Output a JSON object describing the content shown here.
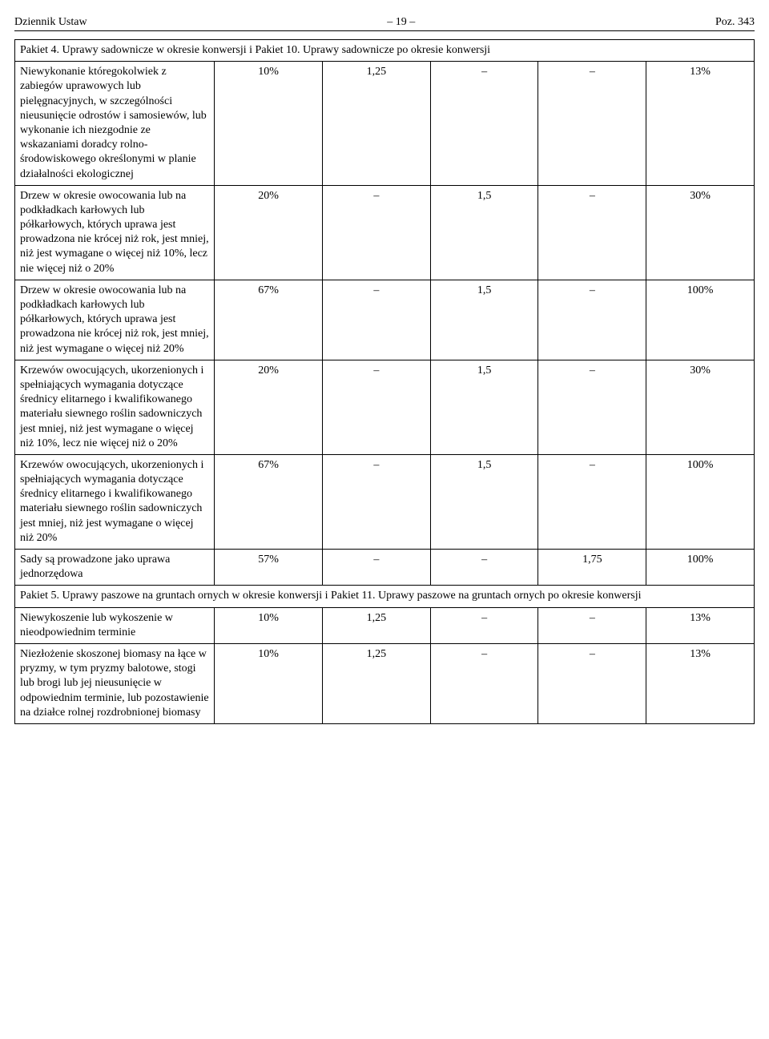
{
  "header": {
    "left": "Dziennik Ustaw",
    "center": "– 19 –",
    "right": "Poz. 343"
  },
  "colors": {
    "text": "#000000",
    "background": "#ffffff",
    "border": "#000000"
  },
  "sections": [
    {
      "heading": "Pakiet 4. Uprawy sadownicze w okresie konwersji i Pakiet 10. Uprawy sadownicze po okresie konwersji",
      "rows": [
        {
          "label": "Niewykonanie któregokolwiek z zabiegów uprawowych lub pielęgnacyjnych, w szczególności nieusunięcie odrostów i samosiewów, lub wykonanie ich niezgodnie ze wskazaniami doradcy rolno-środowiskowego określonymi w planie działalności ekologicznej",
          "c1": "10%",
          "c2": "1,25",
          "c3": "–",
          "c4": "–",
          "c5": "13%"
        },
        {
          "label": "Drzew w okresie owocowania lub na podkładkach karłowych lub półkarłowych, których uprawa jest prowadzona nie krócej niż rok, jest mniej, niż jest wymagane o więcej niż 10%, lecz nie więcej niż o 20%",
          "c1": "20%",
          "c2": "–",
          "c3": "1,5",
          "c4": "–",
          "c5": "30%"
        },
        {
          "label": "Drzew w okresie owocowania lub na podkładkach karłowych lub półkarłowych, których uprawa jest prowadzona nie krócej niż rok, jest mniej, niż jest wymagane o więcej niż 20%",
          "c1": "67%",
          "c2": "–",
          "c3": "1,5",
          "c4": "–",
          "c5": "100%"
        },
        {
          "label": "Krzewów owocujących, ukorzenionych i spełniających wymagania dotyczące średnicy elitarnego i kwalifikowanego materiału siewnego roślin sadowniczych jest mniej, niż jest wymagane o więcej niż 10%, lecz nie więcej niż o 20%",
          "c1": "20%",
          "c2": "–",
          "c3": "1,5",
          "c4": "–",
          "c5": "30%"
        },
        {
          "label": "Krzewów owocujących, ukorzenionych i spełniających wymagania dotyczące średnicy elitarnego i kwalifikowanego materiału siewnego roślin sadowniczych jest mniej, niż jest wymagane o więcej niż 20%",
          "c1": "67%",
          "c2": "–",
          "c3": "1,5",
          "c4": "–",
          "c5": "100%"
        },
        {
          "label": "Sady są prowadzone jako uprawa jednorzędowa",
          "c1": "57%",
          "c2": "–",
          "c3": "–",
          "c4": "1,75",
          "c5": "100%"
        }
      ]
    },
    {
      "heading": "Pakiet 5. Uprawy paszowe na gruntach ornych w okresie konwersji i Pakiet 11. Uprawy paszowe na gruntach ornych po okresie konwersji",
      "rows": [
        {
          "label": "Niewykoszenie lub wykoszenie w nieodpowiednim terminie",
          "c1": "10%",
          "c2": "1,25",
          "c3": "–",
          "c4": "–",
          "c5": "13%"
        },
        {
          "label": "Niezłożenie skoszonej biomasy na łące w pryzmy, w tym pryzmy balotowe, stogi lub brogi lub jej nieusunięcie w odpowiednim terminie, lub pozostawienie na działce rolnej rozdrobnionej biomasy",
          "c1": "10%",
          "c2": "1,25",
          "c3": "–",
          "c4": "–",
          "c5": "13%"
        }
      ]
    }
  ]
}
